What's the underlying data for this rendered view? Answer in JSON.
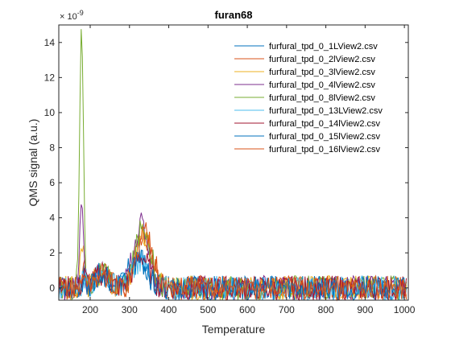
{
  "chart_data": {
    "type": "line",
    "title": "furan68",
    "xlabel": "Temperature",
    "ylabel": "QMS signal (a.u.)",
    "y_exponent_label": "× 10",
    "y_exponent_power": "-9",
    "xlim": [
      120,
      1010
    ],
    "ylim": [
      -0.7,
      15
    ],
    "xticks": [
      200,
      300,
      400,
      500,
      600,
      700,
      800,
      900,
      1000
    ],
    "xtick_labels": [
      "200",
      "300",
      "400",
      "500",
      "600",
      "700",
      "800",
      "900",
      "1000"
    ],
    "yticks": [
      0,
      2,
      4,
      6,
      8,
      10,
      12,
      14
    ],
    "ytick_labels": [
      "0",
      "2",
      "4",
      "6",
      "8",
      "10",
      "12",
      "14"
    ],
    "grid": false,
    "legend_position": "top-right",
    "series": [
      {
        "name": "furfural_tpd_0_1LView2.csv",
        "color": "#0072BD",
        "peak1_t": 185,
        "peak1_h": 0.8,
        "peak2_t": 320,
        "peak2_h": 2.0
      },
      {
        "name": "furfural_tpd_0_2lView2.csv",
        "color": "#D95319",
        "peak1_t": 185,
        "peak1_h": 1.0,
        "peak2_t": 335,
        "peak2_h": 3.2
      },
      {
        "name": "furfural_tpd_0_3lView2.csv",
        "color": "#EDB120",
        "peak1_t": 180,
        "peak1_h": 2.5,
        "peak2_t": 335,
        "peak2_h": 3.0
      },
      {
        "name": "furfural_tpd_0_4lView2.csv",
        "color": "#7E2F8E",
        "peak1_t": 178,
        "peak1_h": 4.5,
        "peak2_t": 330,
        "peak2_h": 3.6
      },
      {
        "name": "furfural_tpd_0_8lView2.csv",
        "color": "#77AC30",
        "peak1_t": 178,
        "peak1_h": 14.5,
        "peak2_t": 335,
        "peak2_h": 3.5
      },
      {
        "name": "furfural_tpd_0_13LView2.csv",
        "color": "#4DBEEE",
        "peak1_t": 185,
        "peak1_h": 0.6,
        "peak2_t": 325,
        "peak2_h": 1.5
      },
      {
        "name": "furfural_tpd_0_14lView2.csv",
        "color": "#A2142F",
        "peak1_t": 185,
        "peak1_h": 0.7,
        "peak2_t": 330,
        "peak2_h": 1.8
      },
      {
        "name": "furfural_tpd_0_15lView2.csv",
        "color": "#0072BD",
        "peak1_t": 185,
        "peak1_h": 0.6,
        "peak2_t": 325,
        "peak2_h": 1.6
      },
      {
        "name": "furfural_tpd_0_16lView2.csv",
        "color": "#D95319",
        "peak1_t": 185,
        "peak1_h": 0.9,
        "peak2_t": 340,
        "peak2_h": 3.3
      }
    ]
  }
}
